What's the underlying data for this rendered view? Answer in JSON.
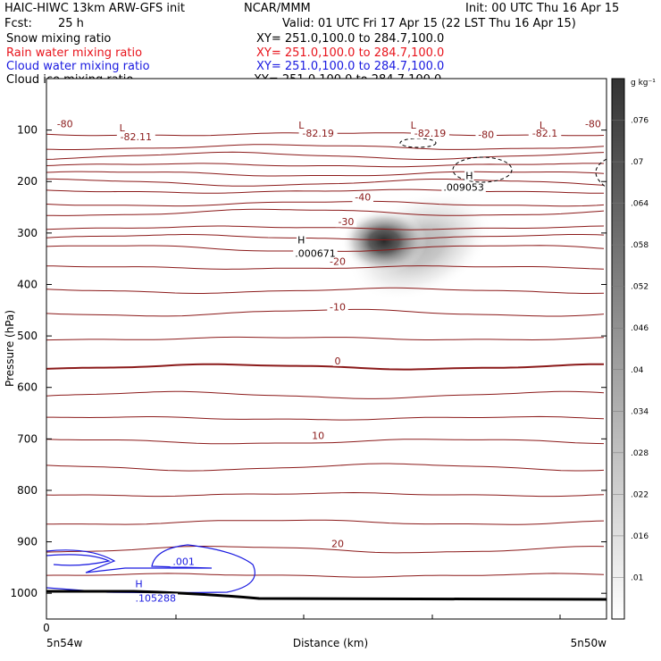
{
  "header": {
    "title_left": "HAIC-HIWC 13km ARW-GFS init",
    "title_center": "NCAR/MMM",
    "init": "Init: 00 UTC Thu 16 Apr 15",
    "fcst_label": "Fcst:",
    "fcst_value": "25 h",
    "valid": "Valid: 01 UTC Fri 17 Apr 15 (22 LST Thu 16 Apr 15)"
  },
  "legend": [
    {
      "name": "Snow mixing ratio",
      "xy": "XY= 251.0,100.0 to 284.7,100.0",
      "color": "#000000"
    },
    {
      "name": "Rain water mixing ratio",
      "xy": "XY= 251.0,100.0 to 284.7,100.0",
      "color": "#e8141c"
    },
    {
      "name": "Cloud water mixing ratio",
      "xy": "XY= 251.0,100.0 to 284.7,100.0",
      "color": "#1a1ae0"
    },
    {
      "name": "Cloud ice mixing ratio",
      "xy": "XY= 251.0,100.0 to 284.7,100.0",
      "color": "#000000"
    }
  ],
  "colors": {
    "isotherm": "#8b1a1a",
    "cloud_water": "#1a1ae0",
    "terrain": "#000000",
    "frame": "#000000"
  },
  "chart_data": {
    "type": "heatmap",
    "ylabel": "Pressure (hPa)",
    "xlabel": "Distance (km)",
    "x_start_label": "5n54w",
    "x_end_label": "5n50w",
    "x_zero_label": "0",
    "yticks": [
      100,
      200,
      300,
      400,
      500,
      600,
      700,
      800,
      900,
      1000
    ],
    "ylim": [
      0,
      1050
    ],
    "y_direction": "down",
    "colorbar": {
      "unit": "g kg⁻¹",
      "ticks": [
        ".01",
        ".016",
        ".022",
        ".028",
        ".034",
        ".04",
        ".046",
        ".052",
        ".058",
        ".064",
        ".07",
        ".076"
      ],
      "range": [
        0.004,
        0.082
      ]
    },
    "ice_blob": {
      "x_frac": 0.6,
      "p": 333,
      "max": 0.08
    },
    "isotherms": [
      {
        "temp": -80,
        "p": 108
      },
      {
        "temp": -80,
        "p": 133
      },
      {
        "temp": null,
        "p": 150
      },
      {
        "temp": null,
        "p": 168
      },
      {
        "temp": null,
        "p": 185
      },
      {
        "temp": null,
        "p": 202
      },
      {
        "temp": null,
        "p": 219
      },
      {
        "temp": -40,
        "p": 243
      },
      {
        "temp": null,
        "p": 260
      },
      {
        "temp": -30,
        "p": 290
      },
      {
        "temp": null,
        "p": 308
      },
      {
        "temp": null,
        "p": 330
      },
      {
        "temp": -20,
        "p": 367
      },
      {
        "temp": null,
        "p": 412
      },
      {
        "temp": -10,
        "p": 455
      },
      {
        "temp": null,
        "p": 505
      },
      {
        "temp": 0,
        "p": 560
      },
      {
        "temp": null,
        "p": 615
      },
      {
        "temp": null,
        "p": 660
      },
      {
        "temp": 10,
        "p": 705
      },
      {
        "temp": null,
        "p": 755
      },
      {
        "temp": null,
        "p": 808
      },
      {
        "temp": null,
        "p": 862
      },
      {
        "temp": 20,
        "p": 915
      },
      {
        "temp": null,
        "p": 965
      }
    ],
    "annotations": [
      {
        "text": "-80",
        "x_frac": 0.033,
        "p": 95,
        "color": "#8b1a1a"
      },
      {
        "text": "L",
        "x_frac": 0.135,
        "p": 102,
        "color": "#8b1a1a"
      },
      {
        "text": "-82.11",
        "x_frac": 0.16,
        "p": 120,
        "color": "#8b1a1a"
      },
      {
        "text": "L",
        "x_frac": 0.455,
        "p": 97,
        "color": "#8b1a1a"
      },
      {
        "text": "-82.19",
        "x_frac": 0.485,
        "p": 113,
        "color": "#8b1a1a"
      },
      {
        "text": "L",
        "x_frac": 0.655,
        "p": 97,
        "color": "#8b1a1a"
      },
      {
        "text": "-82.19",
        "x_frac": 0.685,
        "p": 113,
        "color": "#8b1a1a"
      },
      {
        "text": "-80",
        "x_frac": 0.785,
        "p": 115,
        "color": "#8b1a1a"
      },
      {
        "text": "L",
        "x_frac": 0.885,
        "p": 97,
        "color": "#8b1a1a"
      },
      {
        "text": "-82.1",
        "x_frac": 0.89,
        "p": 113,
        "color": "#8b1a1a"
      },
      {
        "text": "-80",
        "x_frac": 0.976,
        "p": 95,
        "color": "#8b1a1a"
      },
      {
        "text": "-40",
        "x_frac": 0.565,
        "p": 237,
        "color": "#8b1a1a"
      },
      {
        "text": "-30",
        "x_frac": 0.535,
        "p": 285,
        "color": "#8b1a1a"
      },
      {
        "text": "H",
        "x_frac": 0.455,
        "p": 320,
        "color": "#000000"
      },
      {
        "text": ".000671",
        "x_frac": 0.48,
        "p": 346,
        "color": "#000000"
      },
      {
        "text": "-20",
        "x_frac": 0.52,
        "p": 362,
        "color": "#8b1a1a"
      },
      {
        "text": "-10",
        "x_frac": 0.52,
        "p": 450,
        "color": "#8b1a1a"
      },
      {
        "text": "0",
        "x_frac": 0.52,
        "p": 555,
        "color": "#8b1a1a"
      },
      {
        "text": "10",
        "x_frac": 0.485,
        "p": 700,
        "color": "#8b1a1a"
      },
      {
        "text": "20",
        "x_frac": 0.52,
        "p": 910,
        "color": "#8b1a1a"
      },
      {
        "text": "H",
        "x_frac": 0.755,
        "p": 195,
        "color": "#000000"
      },
      {
        "text": ".009053",
        "x_frac": 0.745,
        "p": 218,
        "color": "#000000"
      },
      {
        "text": ".001",
        "x_frac": 0.245,
        "p": 945,
        "color": "#1a1ae0"
      },
      {
        "text": "H",
        "x_frac": 0.165,
        "p": 988,
        "color": "#1a1ae0"
      },
      {
        "text": ".105288",
        "x_frac": 0.195,
        "p": 1016,
        "color": "#1a1ae0"
      }
    ]
  }
}
